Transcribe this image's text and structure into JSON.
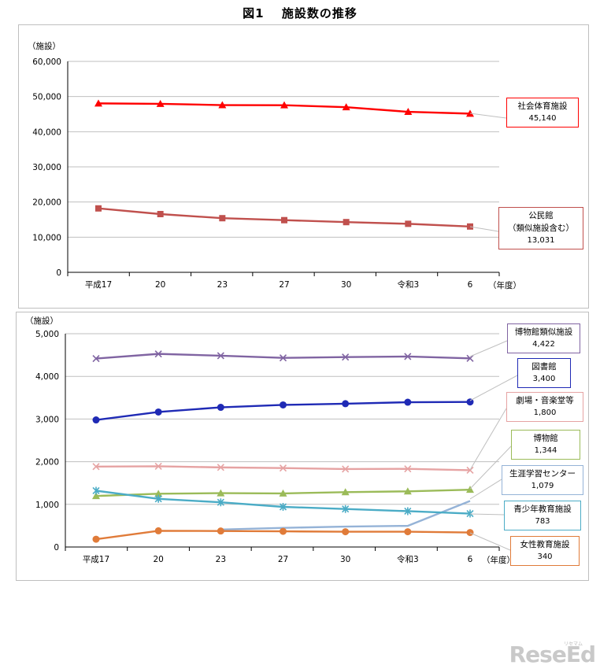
{
  "figure_title": "図1　 施設数の推移",
  "watermark": "ReseEd",
  "watermark_sub": "リセマム",
  "chart_data": [
    {
      "type": "line",
      "ylabel": "（施設）",
      "xlabel": "（年度）",
      "categories": [
        "平成17",
        "20",
        "23",
        "27",
        "30",
        "令和3",
        "6"
      ],
      "ylim": [
        0,
        60000
      ],
      "yticks": [
        "0",
        "10,000",
        "20,000",
        "30,000",
        "40,000",
        "50,000",
        "60,000"
      ],
      "grid": true,
      "series": [
        {
          "name": "社会体育施設",
          "label_value": "45,140",
          "color": "#ff0000",
          "marker": "triangle",
          "values": [
            48055,
            47925,
            47571,
            47536,
            46981,
            45658,
            45140
          ]
        },
        {
          "name": "公民館",
          "name_sub": "（類似施設含む）",
          "label_value": "13,031",
          "color": "#c0504d",
          "marker": "square",
          "values": [
            18182,
            16566,
            15399,
            14841,
            14281,
            13798,
            13031
          ]
        }
      ]
    },
    {
      "type": "line",
      "ylabel": "（施設）",
      "xlabel": "（年度）",
      "categories": [
        "平成17",
        "20",
        "23",
        "27",
        "30",
        "令和3",
        "6"
      ],
      "ylim": [
        0,
        5000
      ],
      "yticks": [
        "0",
        "1,000",
        "2,000",
        "3,000",
        "4,000",
        "5,000"
      ],
      "grid": true,
      "series": [
        {
          "name": "博物館類似施設",
          "label_value": "4,422",
          "color": "#8064a2",
          "marker": "x",
          "values": [
            4418,
            4527,
            4485,
            4434,
            4452,
            4466,
            4422
          ]
        },
        {
          "name": "図書館",
          "label_value": "3,400",
          "color": "#1f2ab5",
          "marker": "circle",
          "values": [
            2979,
            3165,
            3274,
            3331,
            3360,
            3394,
            3400
          ]
        },
        {
          "name": "劇場・音楽堂等",
          "label_value": "1,800",
          "color": "#e6a3a3",
          "marker": "x",
          "values": [
            1885,
            1893,
            1866,
            1851,
            1827,
            1832,
            1800
          ]
        },
        {
          "name": "博物館",
          "label_value": "1,344",
          "color": "#9bbb59",
          "marker": "triangle",
          "values": [
            1196,
            1248,
            1262,
            1256,
            1286,
            1305,
            1344
          ]
        },
        {
          "name": "生涯学習センター",
          "label_value": "1,079",
          "color": "#95b3d7",
          "marker": "none",
          "values": [
            null,
            null,
            409,
            449,
            478,
            496,
            1079
          ]
        },
        {
          "name": "青少年教育施設",
          "label_value": "783",
          "color": "#4bacc6",
          "marker": "star",
          "values": [
            1320,
            1129,
            1048,
            941,
            891,
            840,
            783
          ]
        },
        {
          "name": "女性教育施設",
          "label_value": "340",
          "color": "#e07b39",
          "marker": "circle",
          "values": [
            183,
            380,
            375,
            367,
            358,
            358,
            340
          ]
        }
      ]
    }
  ]
}
